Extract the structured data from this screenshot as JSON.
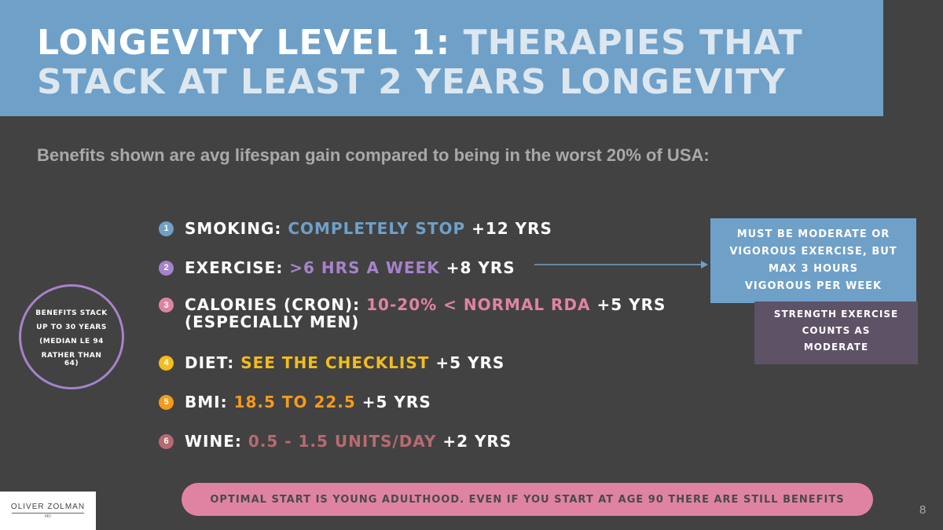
{
  "header": {
    "title_part1": "LONGEVITY LEVEL 1:",
    "title_part2": "THERAPIES THAT STACK AT LEAST 2 YEARS LONGEVITY"
  },
  "subtitle": "Benefits shown are avg lifespan gain compared to being in the worst 20% of USA:",
  "items": [
    {
      "number": "1",
      "label": "SMOKING:",
      "highlight": "COMPLETELY STOP",
      "gain": "+12 YRS",
      "color": "#6fa0c8"
    },
    {
      "number": "2",
      "label": "EXERCISE:",
      "highlight": ">6 HRS A WEEK",
      "gain": "+8 YRS",
      "color": "#a683cb"
    },
    {
      "number": "3",
      "label": "CALORIES (CRON):",
      "highlight": "10-20% < NORMAL RDA",
      "gain": "+5 YRS",
      "line2": "(ESPECIALLY MEN)",
      "color": "#e083a3"
    },
    {
      "number": "4",
      "label": "DIET:",
      "highlight": "SEE THE CHECKLIST",
      "gain": "+5 YRS",
      "color": "#f2bd1d"
    },
    {
      "number": "5",
      "label": "BMI:",
      "highlight": "18.5 TO 22.5",
      "gain": "+5 YRS",
      "color": "#f69a1b"
    },
    {
      "number": "6",
      "label": "WINE:",
      "highlight": "0.5 - 1.5 UNITS/DAY",
      "gain": "+2 YRS",
      "color": "#b86a72"
    }
  ],
  "exercise_note": {
    "line1": "MUST BE MODERATE OR",
    "line2": "VIGOROUS EXERCISE, BUT",
    "line3": "MAX 3 HOURS",
    "line4": "VIGOROUS PER WEEK"
  },
  "strength_note": {
    "line1": "STRENGTH EXERCISE",
    "line2": "COUNTS AS",
    "line3": "MODERATE"
  },
  "stack_note": {
    "line1": "BENEFITS STACK",
    "line2": "UP TO 30 YEARS",
    "line3": "(MEDIAN LE 94",
    "line4": "RATHER THAN",
    "line5": "64)"
  },
  "bottom_banner": "OPTIMAL START IS YOUNG ADULTHOOD. EVEN IF YOU START AT AGE 90 THERE ARE STILL BENEFITS",
  "logo": {
    "name": "OLIVER ZOLMAN",
    "sub": "MD"
  },
  "page_number": "8"
}
